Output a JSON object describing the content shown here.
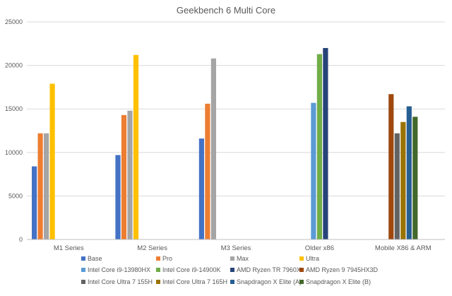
{
  "chart_data": {
    "type": "bar",
    "title": "Geekbench  6 Multi Core",
    "xlabel": "",
    "ylabel": "",
    "ylim": [
      0,
      25000
    ],
    "yticks": [
      0,
      5000,
      10000,
      15000,
      20000,
      25000
    ],
    "ytick_labels": [
      "0",
      "5000",
      "10000",
      "15000",
      "20000",
      "25000"
    ],
    "grid": true,
    "legend_position": "bottom",
    "categories": [
      "M1 Series",
      "M2 Series",
      "M3 Series",
      "Older x86",
      "Mobile X86 & ARM"
    ],
    "series": [
      {
        "name": "Base",
        "color": "#4472C4",
        "values": [
          8400,
          9700,
          11600,
          null,
          null
        ]
      },
      {
        "name": "Pro",
        "color": "#ED7D31",
        "values": [
          12200,
          14300,
          15600,
          null,
          null
        ]
      },
      {
        "name": "Max",
        "color": "#A5A5A5",
        "values": [
          12200,
          14800,
          20800,
          null,
          null
        ]
      },
      {
        "name": "Ultra",
        "color": "#FFC000",
        "values": [
          17900,
          21200,
          null,
          null,
          null
        ]
      },
      {
        "name": "Intel Core i9-13980HX",
        "color": "#5B9BD5",
        "values": [
          null,
          null,
          null,
          15700,
          null
        ]
      },
      {
        "name": "Intel Core i9-14900K",
        "color": "#70AD47",
        "values": [
          null,
          null,
          null,
          21300,
          null
        ]
      },
      {
        "name": "AMD Ryzen TR 7960X",
        "color": "#264478",
        "values": [
          null,
          null,
          null,
          22000,
          null
        ]
      },
      {
        "name": "AMD Ryzen 9 7945HX3D",
        "color": "#9E480E",
        "values": [
          null,
          null,
          null,
          null,
          16700
        ]
      },
      {
        "name": "Intel Core Ultra 7 155H",
        "color": "#636363",
        "values": [
          null,
          null,
          null,
          null,
          12200
        ]
      },
      {
        "name": "Intel Core Ultra 7 165H",
        "color": "#997300",
        "values": [
          null,
          null,
          null,
          null,
          13500
        ]
      },
      {
        "name": "Snapdragon X Elite (A)",
        "color": "#255E91",
        "values": [
          null,
          null,
          null,
          null,
          15300
        ]
      },
      {
        "name": "Snapdragon X Elite (B)",
        "color": "#43682B",
        "values": [
          null,
          null,
          null,
          null,
          14100
        ]
      }
    ]
  }
}
